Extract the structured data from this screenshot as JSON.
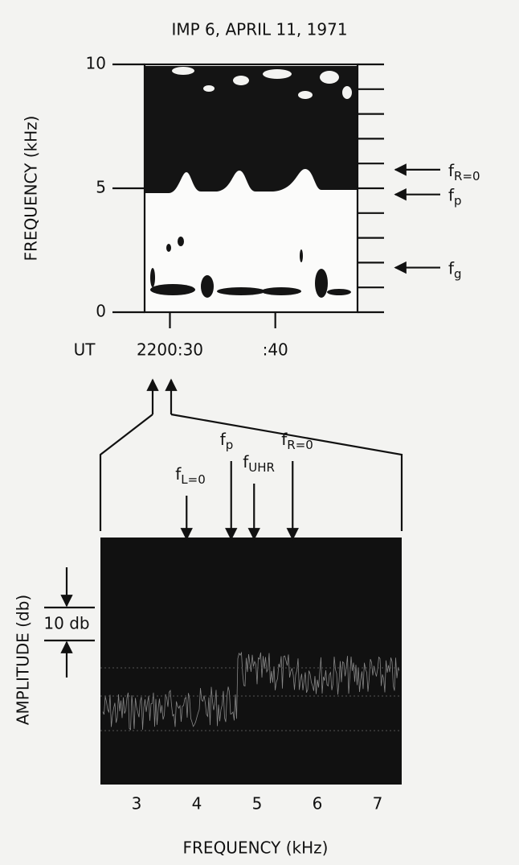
{
  "title": "IMP 6,   APRIL 11, 1971",
  "spectrogram": {
    "ylabel": "FREQUENCY (kHz)",
    "ylim": [
      0,
      10
    ],
    "yticks": [
      0,
      5,
      10
    ],
    "right_ticks": [
      0,
      1,
      2,
      3,
      4,
      5,
      6,
      7,
      8,
      9,
      10
    ],
    "xprefix": "UT",
    "xlim": [
      27.6,
      47.8
    ],
    "xticks": [
      {
        "value": 30,
        "label": "2200:30"
      },
      {
        "value": 40,
        "label": ":40"
      }
    ],
    "markers": [
      {
        "base": "f",
        "sub": "R=0",
        "value": 5.75
      },
      {
        "base": "f",
        "sub": "p",
        "value": 4.75
      },
      {
        "base": "f",
        "sub": "g",
        "value": 1.8
      }
    ]
  },
  "spectrum": {
    "ylabel": "AMPLITUDE (db)",
    "scale": "10 db",
    "xlabel": "FREQUENCY (kHz)",
    "xlim": [
      2.4,
      7.4
    ],
    "xticks": [
      3,
      4,
      5,
      6,
      7
    ],
    "markers": [
      {
        "base": "f",
        "sub": "L=0",
        "value": 3.83
      },
      {
        "base": "f",
        "sub": "p",
        "value": 4.57
      },
      {
        "base": "f",
        "sub": "UHR",
        "value": 4.95
      },
      {
        "base": "f",
        "sub": "R=0",
        "value": 5.59
      }
    ]
  }
}
